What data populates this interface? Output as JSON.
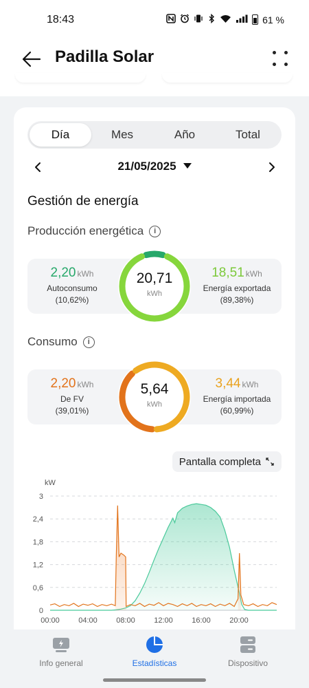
{
  "status_bar": {
    "time": "18:43",
    "battery_percent": "61 %"
  },
  "header": {
    "title": "Padilla Solar"
  },
  "tabs": [
    {
      "label": "Día",
      "active": true
    },
    {
      "label": "Mes",
      "active": false
    },
    {
      "label": "Año",
      "active": false
    },
    {
      "label": "Total",
      "active": false
    }
  ],
  "date_selector": {
    "date": "21/05/2025"
  },
  "energy_management": {
    "title": "Gestión de energía",
    "production": {
      "title": "Producción energética",
      "total": "20,71",
      "total_unit": "kWh",
      "left": {
        "value": "2,20",
        "unit": "kWh",
        "label": "Autoconsumo",
        "percent": "(10,62%)"
      },
      "right": {
        "value": "18,51",
        "unit": "kWh",
        "label": "Energía exportada",
        "percent": "(89,38%)"
      },
      "self_fraction": 0.1062,
      "colors": {
        "self": "#27a86a",
        "export": "#86d63c"
      }
    },
    "consumption": {
      "title": "Consumo",
      "total": "5,64",
      "total_unit": "kWh",
      "left": {
        "value": "2,20",
        "unit": "kWh",
        "label": "De FV",
        "percent": "(39,01%)"
      },
      "right": {
        "value": "3,44",
        "unit": "kWh",
        "label": "Energía importada",
        "percent": "(60,99%)"
      },
      "pv_fraction": 0.3901,
      "colors": {
        "pv": "#e2731b",
        "imported": "#eeaa22"
      }
    }
  },
  "fullscreen_label": "Pantalla completa",
  "chart_data": {
    "type": "line",
    "ylabel": "kW",
    "yticks": [
      "3",
      "2,4",
      "1,8",
      "1,2",
      "0,6",
      "0"
    ],
    "ytick_values": [
      3,
      2.4,
      1.8,
      1.2,
      0.6,
      0
    ],
    "xticks": [
      "00:00",
      "04:00",
      "08:00",
      "12:00",
      "16:00",
      "20:00"
    ],
    "xtick_values": [
      0,
      4,
      8,
      12,
      16,
      20
    ],
    "xlim": [
      0,
      24
    ],
    "ylim": [
      0,
      3
    ],
    "grid": true,
    "series": [
      {
        "color": "#49c99a",
        "fill": "area",
        "points": [
          [
            0,
            0
          ],
          [
            6.5,
            0
          ],
          [
            7,
            0.01
          ],
          [
            7.5,
            0.03
          ],
          [
            8,
            0.06
          ],
          [
            8.5,
            0.12
          ],
          [
            9,
            0.25
          ],
          [
            9.5,
            0.45
          ],
          [
            10,
            0.7
          ],
          [
            10.5,
            1.0
          ],
          [
            11,
            1.32
          ],
          [
            11.5,
            1.62
          ],
          [
            12,
            1.9
          ],
          [
            12.5,
            2.18
          ],
          [
            13,
            2.42
          ],
          [
            13.2,
            2.3
          ],
          [
            13.5,
            2.56
          ],
          [
            14,
            2.68
          ],
          [
            14.5,
            2.74
          ],
          [
            15,
            2.78
          ],
          [
            15.5,
            2.8
          ],
          [
            16,
            2.78
          ],
          [
            16.5,
            2.76
          ],
          [
            17,
            2.7
          ],
          [
            17.5,
            2.6
          ],
          [
            18,
            2.45
          ],
          [
            18.5,
            2.1
          ],
          [
            19,
            1.65
          ],
          [
            19.5,
            1.05
          ],
          [
            20,
            0.5
          ],
          [
            20.3,
            0.15
          ],
          [
            20.6,
            0.02
          ],
          [
            21,
            0
          ],
          [
            24,
            0
          ]
        ]
      },
      {
        "color": "#e2731b",
        "fill": "spikes",
        "points": [
          [
            0,
            0.14
          ],
          [
            0.5,
            0.17
          ],
          [
            1,
            0.1
          ],
          [
            1.5,
            0.15
          ],
          [
            2,
            0.12
          ],
          [
            2.5,
            0.18
          ],
          [
            3,
            0.1
          ],
          [
            3.5,
            0.16
          ],
          [
            4,
            0.13
          ],
          [
            4.5,
            0.17
          ],
          [
            5,
            0.1
          ],
          [
            5.5,
            0.15
          ],
          [
            6,
            0.12
          ],
          [
            6.5,
            0.16
          ],
          [
            6.9,
            0.12
          ],
          [
            7.0,
            1.4
          ],
          [
            7.15,
            2.75
          ],
          [
            7.3,
            1.4
          ],
          [
            7.5,
            1.5
          ],
          [
            7.8,
            1.45
          ],
          [
            8.0,
            1.4
          ],
          [
            8.05,
            0.1
          ],
          [
            8.5,
            0.15
          ],
          [
            9,
            0.12
          ],
          [
            9.5,
            0.18
          ],
          [
            10,
            0.1
          ],
          [
            10.5,
            0.16
          ],
          [
            11,
            0.13
          ],
          [
            11.5,
            0.2
          ],
          [
            12,
            0.12
          ],
          [
            12.5,
            0.18
          ],
          [
            13,
            0.15
          ],
          [
            13.5,
            0.1
          ],
          [
            14,
            0.17
          ],
          [
            14.5,
            0.12
          ],
          [
            15,
            0.18
          ],
          [
            15.5,
            0.1
          ],
          [
            16,
            0.15
          ],
          [
            16.5,
            0.12
          ],
          [
            17,
            0.17
          ],
          [
            17.5,
            0.1
          ],
          [
            18,
            0.16
          ],
          [
            18.5,
            0.12
          ],
          [
            19,
            0.18
          ],
          [
            19.5,
            0.1
          ],
          [
            19.9,
            0.3
          ],
          [
            20.05,
            1.5
          ],
          [
            20.2,
            0.4
          ],
          [
            20.5,
            0.15
          ],
          [
            21,
            0.12
          ],
          [
            21.5,
            0.17
          ],
          [
            22,
            0.1
          ],
          [
            22.5,
            0.15
          ],
          [
            23,
            0.12
          ],
          [
            23.5,
            0.2
          ],
          [
            24,
            0.15
          ]
        ]
      }
    ]
  },
  "bottom_nav": [
    {
      "label": "Info general",
      "icon": "solar-panel-icon",
      "active": false
    },
    {
      "label": "Estadísticas",
      "icon": "pie-chart-icon",
      "active": true
    },
    {
      "label": "Dispositivo",
      "icon": "server-icon",
      "active": false
    }
  ]
}
